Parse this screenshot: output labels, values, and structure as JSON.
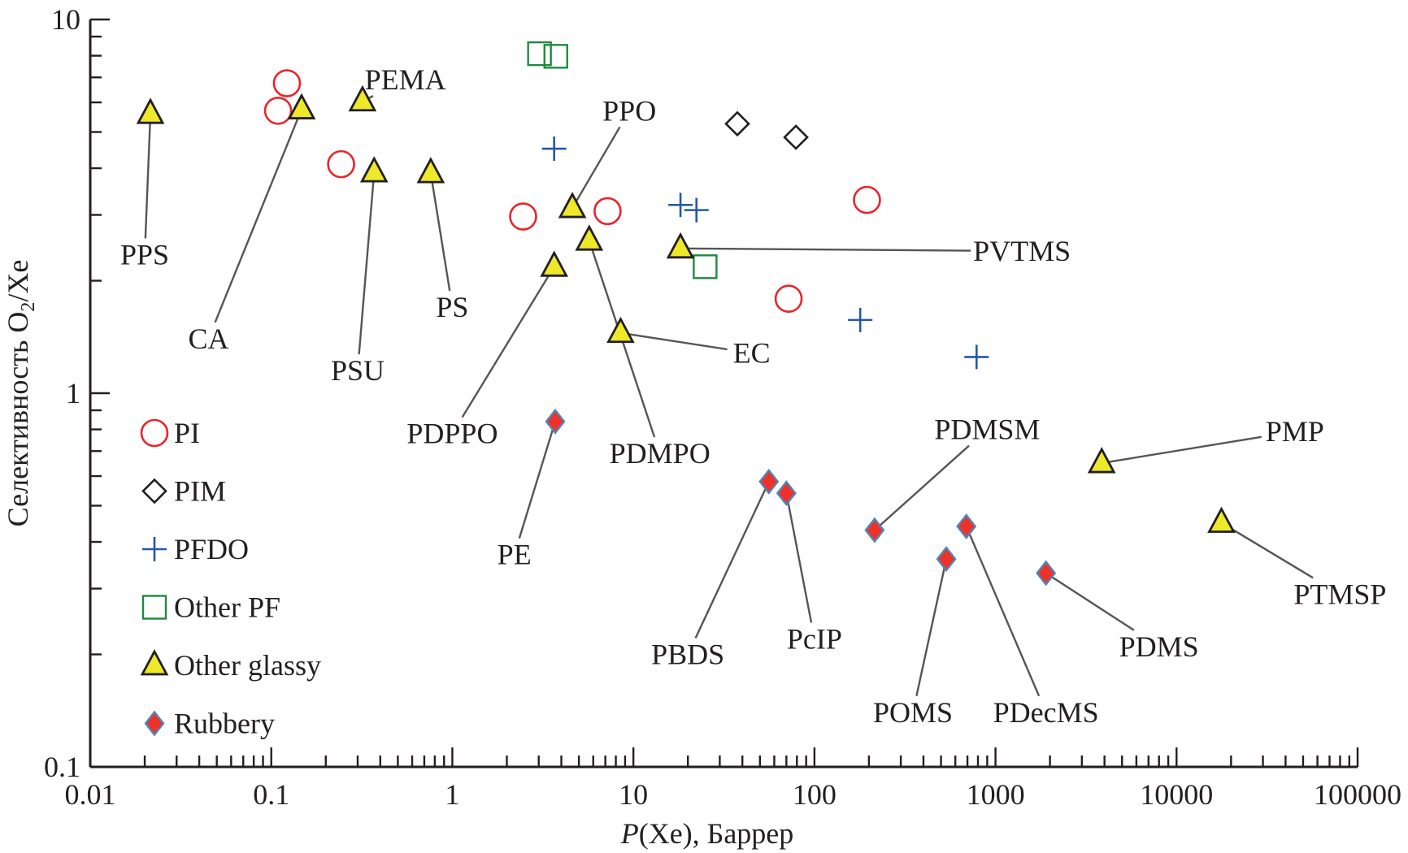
{
  "chart_data": {
    "type": "scatter",
    "title": "",
    "xlabel_italic": "P",
    "xlabel_rest": "(Xe), Баррер",
    "ylabel_main": "Селективность O",
    "ylabel_sub": "2",
    "ylabel_tail": "/Xe",
    "xscale": "log",
    "yscale": "log",
    "xlim": [
      0.01,
      100000
    ],
    "ylim": [
      0.1,
      10
    ],
    "xticks": [
      0.01,
      0.1,
      1,
      10,
      100,
      1000,
      10000,
      100000
    ],
    "xtick_labels": [
      "0.01",
      "0.1",
      "1",
      "10",
      "100",
      "1000",
      "10000",
      "100000"
    ],
    "yticks": [
      0.1,
      1,
      10
    ],
    "ytick_labels": [
      "0.1",
      "1",
      "10"
    ],
    "grid": false,
    "legend_position": "center-left",
    "series": [
      {
        "name": "PI",
        "marker": "circle",
        "color": "#e8262b",
        "fill": "none",
        "points": [
          {
            "x": 0.109,
            "y": 5.7
          },
          {
            "x": 0.122,
            "y": 6.75
          },
          {
            "x": 0.243,
            "y": 4.1
          },
          {
            "x": 2.46,
            "y": 2.97
          },
          {
            "x": 7.2,
            "y": 3.07
          },
          {
            "x": 195,
            "y": 3.29
          },
          {
            "x": 72,
            "y": 1.79
          }
        ]
      },
      {
        "name": "PIM",
        "marker": "diamond",
        "color": "#231f20",
        "fill": "none",
        "points": [
          {
            "x": 37.5,
            "y": 5.26
          },
          {
            "x": 79,
            "y": 4.84
          }
        ]
      },
      {
        "name": "PFDO",
        "marker": "plus",
        "color": "#2457a7",
        "fill": "none",
        "points": [
          {
            "x": 3.65,
            "y": 4.51
          },
          {
            "x": 18.2,
            "y": 3.19
          },
          {
            "x": 22.3,
            "y": 3.09
          },
          {
            "x": 179,
            "y": 1.57
          },
          {
            "x": 786,
            "y": 1.25
          }
        ]
      },
      {
        "name": "Other PF",
        "marker": "square",
        "color": "#1f8a3e",
        "fill": "none",
        "points": [
          {
            "x": 3.03,
            "y": 8.1
          },
          {
            "x": 3.73,
            "y": 7.97
          },
          {
            "x": 24.9,
            "y": 2.18
          }
        ]
      },
      {
        "name": "Other glassy",
        "marker": "triangle",
        "color": "#231f20",
        "fill": "#ede82a",
        "points": [
          {
            "x": 0.0215,
            "y": 5.59,
            "label": "PPS"
          },
          {
            "x": 0.147,
            "y": 5.75,
            "label": "CA"
          },
          {
            "x": 0.319,
            "y": 6.04,
            "label": "PEMA"
          },
          {
            "x": 0.37,
            "y": 3.9,
            "label": "PSU"
          },
          {
            "x": 0.76,
            "y": 3.88,
            "label": "PS"
          },
          {
            "x": 4.6,
            "y": 3.13,
            "label": "PPO"
          },
          {
            "x": 5.7,
            "y": 2.56,
            "label": "PDMPO"
          },
          {
            "x": 3.65,
            "y": 2.18,
            "label": "PDPPO"
          },
          {
            "x": 18.2,
            "y": 2.44,
            "label": "PVTMS"
          },
          {
            "x": 8.5,
            "y": 1.45,
            "label": "EC"
          },
          {
            "x": 3860,
            "y": 0.65,
            "label": "PMP"
          },
          {
            "x": 17700,
            "y": 0.45,
            "label": "PTMSP"
          }
        ]
      },
      {
        "name": "Rubbery",
        "marker": "filled-diamond",
        "color": "#4f86b8",
        "fill": "#ee3229",
        "points": [
          {
            "x": 3.7,
            "y": 0.84,
            "label": "PE"
          },
          {
            "x": 56,
            "y": 0.58,
            "label": "PBDS"
          },
          {
            "x": 70,
            "y": 0.54,
            "label": "PcIP"
          },
          {
            "x": 215,
            "y": 0.43,
            "label": "PDMSM"
          },
          {
            "x": 535,
            "y": 0.36,
            "label": "POMS"
          },
          {
            "x": 690,
            "y": 0.44,
            "label": "PDecMS"
          },
          {
            "x": 1900,
            "y": 0.33,
            "label": "PDMS"
          }
        ]
      }
    ],
    "annotations": [
      {
        "text": "PPS",
        "x": 0.02,
        "y": 2.35
      },
      {
        "text": "CA",
        "x": 0.045,
        "y": 1.4
      },
      {
        "text": "PEMA",
        "x": 0.55,
        "y": 6.9
      },
      {
        "text": "PSU",
        "x": 0.3,
        "y": 1.15
      },
      {
        "text": "PS",
        "x": 1.0,
        "y": 1.7
      },
      {
        "text": "PPO",
        "x": 9.5,
        "y": 5.7
      },
      {
        "text": "PDMPO",
        "x": 14,
        "y": 0.69
      },
      {
        "text": "PDPPO",
        "x": 1.0,
        "y": 0.78
      },
      {
        "text": "PVTMS",
        "x": 1400,
        "y": 2.4
      },
      {
        "text": "EC",
        "x": 45,
        "y": 1.28
      },
      {
        "text": "PMP",
        "x": 45000,
        "y": 0.79
      },
      {
        "text": "PTMSP",
        "x": 80000,
        "y": 0.29
      },
      {
        "text": "PE",
        "x": 2.2,
        "y": 0.37
      },
      {
        "text": "PBDS",
        "x": 20,
        "y": 0.2
      },
      {
        "text": "PcIP",
        "x": 100,
        "y": 0.22
      },
      {
        "text": "PDMSM",
        "x": 900,
        "y": 0.8
      },
      {
        "text": "POMS",
        "x": 350,
        "y": 0.14
      },
      {
        "text": "PDecMS",
        "x": 1900,
        "y": 0.14
      },
      {
        "text": "PDMS",
        "x": 8000,
        "y": 0.21
      }
    ]
  }
}
